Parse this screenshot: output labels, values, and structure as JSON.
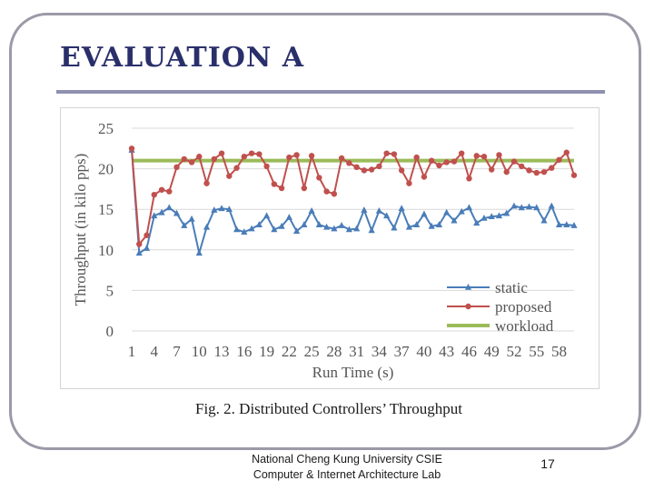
{
  "slide": {
    "title": "EVALUATION A",
    "caption": "Fig. 2. Distributed Controllers’ Throughput",
    "footer_line1": "National Cheng Kung University CSIE",
    "footer_line2": "Computer & Internet Architecture Lab",
    "page_number": "17"
  },
  "chart_data": {
    "type": "line",
    "title": "",
    "xlabel": "Run Time (s)",
    "ylabel": "Throughput (in kilo pps)",
    "x": [
      1,
      2,
      3,
      4,
      5,
      6,
      7,
      8,
      9,
      10,
      11,
      12,
      13,
      14,
      15,
      16,
      17,
      18,
      19,
      20,
      21,
      22,
      23,
      24,
      25,
      26,
      27,
      28,
      29,
      30,
      31,
      32,
      33,
      34,
      35,
      36,
      37,
      38,
      39,
      40,
      41,
      42,
      43,
      44,
      45,
      46,
      47,
      48,
      49,
      50,
      51,
      52,
      53,
      54,
      55,
      56,
      57,
      58,
      59,
      60
    ],
    "x_tick_labels": [
      "1",
      "4",
      "7",
      "10",
      "13",
      "16",
      "19",
      "22",
      "25",
      "28",
      "31",
      "34",
      "37",
      "40",
      "43",
      "46",
      "49",
      "52",
      "55",
      "58"
    ],
    "xlim": [
      1,
      60
    ],
    "ylim": [
      0,
      25
    ],
    "y_ticks": [
      "0",
      "5",
      "10",
      "15",
      "20",
      "25"
    ],
    "grid": "horizontal",
    "legend_position": "bottom-right",
    "colors": {
      "static": "#4a7db8",
      "proposed": "#c0504d",
      "workload": "#9bbb59"
    },
    "series": [
      {
        "name": "static",
        "marker": "triangle",
        "values": [
          22.3,
          9.6,
          10.2,
          14.2,
          14.6,
          15.2,
          14.5,
          13.0,
          13.8,
          9.6,
          12.8,
          14.9,
          15.1,
          15.0,
          12.5,
          12.2,
          12.6,
          13.1,
          14.2,
          12.5,
          12.9,
          14.0,
          12.3,
          13.1,
          14.8,
          13.1,
          12.8,
          12.6,
          13.0,
          12.5,
          12.6,
          14.9,
          12.4,
          14.8,
          14.2,
          12.7,
          15.1,
          12.8,
          13.1,
          14.4,
          12.9,
          13.1,
          14.6,
          13.6,
          14.7,
          15.2,
          13.3,
          13.9,
          14.1,
          14.2,
          14.5,
          15.4,
          15.2,
          15.3,
          15.2,
          13.6,
          15.4,
          13.1,
          13.1,
          13.0
        ]
      },
      {
        "name": "proposed",
        "marker": "circle",
        "values": [
          22.5,
          10.7,
          11.8,
          16.8,
          17.4,
          17.2,
          20.2,
          21.2,
          20.8,
          21.5,
          18.2,
          21.2,
          21.9,
          19.1,
          20.1,
          21.5,
          21.9,
          21.8,
          20.3,
          18.1,
          17.6,
          21.4,
          21.7,
          17.6,
          21.6,
          18.9,
          17.2,
          16.9,
          21.3,
          20.7,
          20.2,
          19.8,
          19.9,
          20.3,
          21.9,
          21.8,
          19.8,
          18.2,
          21.4,
          19.0,
          21.0,
          20.4,
          20.8,
          20.9,
          21.9,
          18.8,
          21.6,
          21.5,
          19.9,
          21.7,
          19.6,
          20.9,
          20.3,
          19.8,
          19.5,
          19.6,
          20.1,
          21.1,
          22.0,
          19.2
        ]
      },
      {
        "name": "workload",
        "marker": "none",
        "values": [
          21,
          21,
          21,
          21,
          21,
          21,
          21,
          21,
          21,
          21,
          21,
          21,
          21,
          21,
          21,
          21,
          21,
          21,
          21,
          21,
          21,
          21,
          21,
          21,
          21,
          21,
          21,
          21,
          21,
          21,
          21,
          21,
          21,
          21,
          21,
          21,
          21,
          21,
          21,
          21,
          21,
          21,
          21,
          21,
          21,
          21,
          21,
          21,
          21,
          21,
          21,
          21,
          21,
          21,
          21,
          21,
          21,
          21,
          21,
          21
        ]
      }
    ]
  }
}
